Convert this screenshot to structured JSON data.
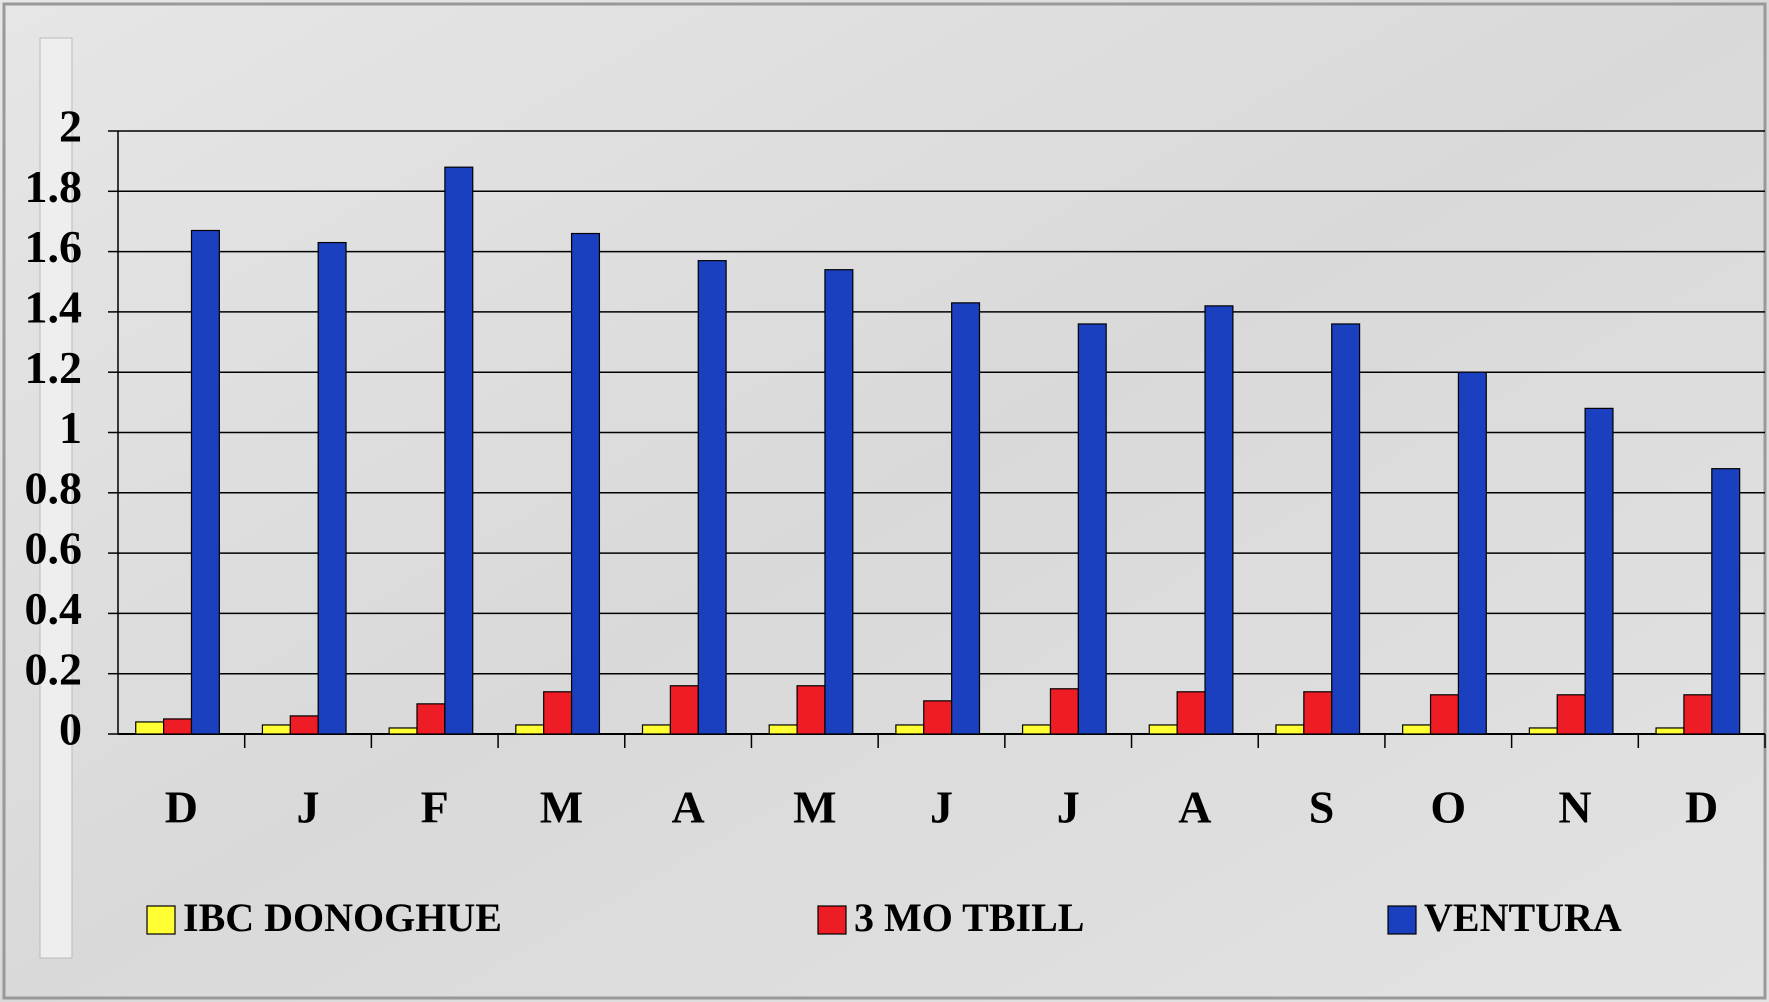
{
  "chart_data": {
    "type": "bar",
    "categories": [
      "D",
      "J",
      "F",
      "M",
      "A",
      "M",
      "J",
      "J",
      "A",
      "S",
      "O",
      "N",
      "D"
    ],
    "series": [
      {
        "name": "IBC DONOGHUE",
        "color": "#ffff33",
        "values": [
          0.04,
          0.03,
          0.02,
          0.03,
          0.03,
          0.03,
          0.03,
          0.03,
          0.03,
          0.03,
          0.03,
          0.02,
          0.02
        ]
      },
      {
        "name": "3 MO TBILL",
        "color": "#ee1c25",
        "values": [
          0.05,
          0.06,
          0.1,
          0.14,
          0.16,
          0.16,
          0.11,
          0.15,
          0.14,
          0.14,
          0.13,
          0.13,
          0.13
        ]
      },
      {
        "name": "VENTURA",
        "color": "#1a3fbf",
        "values": [
          1.67,
          1.63,
          1.88,
          1.66,
          1.57,
          1.54,
          1.43,
          1.36,
          1.42,
          1.36,
          1.2,
          1.08,
          0.88
        ]
      }
    ],
    "ylim": [
      0,
      2
    ],
    "yticks": [
      0,
      0.2,
      0.4,
      0.6,
      0.8,
      1,
      1.2,
      1.4,
      1.6,
      1.8,
      2
    ],
    "grid": true,
    "legend": "bottom"
  }
}
